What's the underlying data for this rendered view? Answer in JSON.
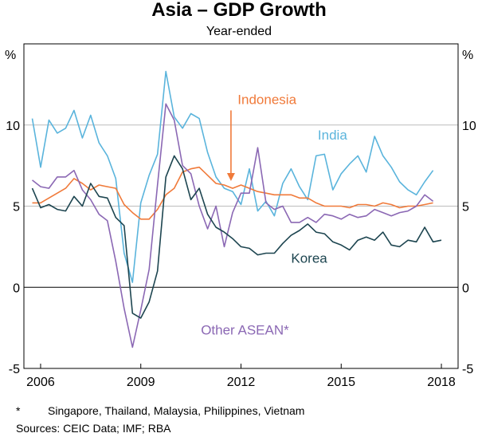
{
  "chart_data": {
    "type": "line",
    "title": "Asia – GDP Growth",
    "subtitle": "Year-ended",
    "y_unit_left": "%",
    "y_unit_right": "%",
    "ylim": [
      -5,
      15
    ],
    "y_ticks": [
      -5,
      0,
      5,
      10
    ],
    "x_range": [
      2005.5,
      2018.5
    ],
    "x_ticks": [
      {
        "value": 2006,
        "label": "2006"
      },
      {
        "value": 2009,
        "label": "2009"
      },
      {
        "value": 2012,
        "label": "2012"
      },
      {
        "value": 2015,
        "label": "2015"
      },
      {
        "value": 2018,
        "label": "2018"
      }
    ],
    "grid": "horizontal",
    "series": [
      {
        "name": "India",
        "color": "#5ab4dc",
        "x": [
          2005.75,
          2006.0,
          2006.25,
          2006.5,
          2006.75,
          2007.0,
          2007.25,
          2007.5,
          2007.75,
          2008.0,
          2008.25,
          2008.5,
          2008.75,
          2009.0,
          2009.25,
          2009.5,
          2009.75,
          2010.0,
          2010.25,
          2010.5,
          2010.75,
          2011.0,
          2011.25,
          2011.5,
          2011.75,
          2012.0,
          2012.25,
          2012.5,
          2012.75,
          2013.0,
          2013.25,
          2013.5,
          2013.75,
          2014.0,
          2014.25,
          2014.5,
          2014.75,
          2015.0,
          2015.25,
          2015.5,
          2015.75,
          2016.0,
          2016.25,
          2016.5,
          2016.75,
          2017.0,
          2017.25,
          2017.5,
          2017.75
        ],
        "y": [
          10.4,
          7.4,
          10.3,
          9.5,
          9.8,
          10.9,
          9.2,
          10.6,
          8.9,
          8.1,
          6.7,
          2.1,
          0.3,
          5.2,
          6.9,
          8.2,
          13.3,
          10.5,
          9.8,
          10.7,
          10.4,
          8.3,
          6.8,
          6.1,
          5.9,
          5.1,
          7.3,
          4.7,
          5.3,
          4.4,
          6.4,
          7.3,
          6.2,
          5.4,
          8.1,
          8.2,
          6.0,
          7.0,
          7.6,
          8.1,
          7.1,
          9.3,
          8.1,
          7.4,
          6.5,
          6.0,
          5.7,
          6.5,
          7.2
        ]
      },
      {
        "name": "Indonesia",
        "color": "#f07a3a",
        "x": [
          2005.75,
          2006.0,
          2006.25,
          2006.5,
          2006.75,
          2007.0,
          2007.25,
          2007.5,
          2007.75,
          2008.0,
          2008.25,
          2008.5,
          2008.75,
          2009.0,
          2009.25,
          2009.5,
          2009.75,
          2010.0,
          2010.25,
          2010.5,
          2010.75,
          2011.0,
          2011.25,
          2011.5,
          2011.75,
          2012.0,
          2012.25,
          2012.5,
          2012.75,
          2013.0,
          2013.25,
          2013.5,
          2013.75,
          2014.0,
          2014.25,
          2014.5,
          2014.75,
          2015.0,
          2015.25,
          2015.5,
          2015.75,
          2016.0,
          2016.25,
          2016.5,
          2016.75,
          2017.0,
          2017.25,
          2017.5,
          2017.75
        ],
        "y": [
          5.2,
          5.2,
          5.5,
          5.8,
          6.1,
          6.7,
          6.4,
          6.0,
          6.3,
          6.2,
          6.1,
          5.1,
          4.6,
          4.2,
          4.2,
          4.8,
          5.7,
          6.1,
          7.1,
          7.3,
          7.4,
          6.9,
          6.4,
          6.3,
          6.1,
          6.3,
          6.1,
          5.9,
          5.8,
          5.7,
          5.7,
          5.7,
          5.5,
          5.5,
          5.2,
          5.0,
          5.0,
          5.0,
          4.9,
          5.1,
          5.1,
          5.0,
          5.2,
          5.1,
          4.9,
          5.0,
          5.0,
          5.1,
          5.2
        ]
      },
      {
        "name": "Other ASEAN*",
        "color": "#8b68b4",
        "x": [
          2005.75,
          2006.0,
          2006.25,
          2006.5,
          2006.75,
          2007.0,
          2007.25,
          2007.5,
          2007.75,
          2008.0,
          2008.25,
          2008.5,
          2008.75,
          2009.0,
          2009.25,
          2009.5,
          2009.75,
          2010.0,
          2010.25,
          2010.5,
          2010.75,
          2011.0,
          2011.25,
          2011.5,
          2011.75,
          2012.0,
          2012.25,
          2012.5,
          2012.75,
          2013.0,
          2013.25,
          2013.5,
          2013.75,
          2014.0,
          2014.25,
          2014.5,
          2014.75,
          2015.0,
          2015.25,
          2015.5,
          2015.75,
          2016.0,
          2016.25,
          2016.5,
          2016.75,
          2017.0,
          2017.25,
          2017.5,
          2017.75
        ],
        "y": [
          6.6,
          6.2,
          6.1,
          6.8,
          6.8,
          7.2,
          6.0,
          5.4,
          4.5,
          4.1,
          1.6,
          -1.3,
          -3.7,
          -1.4,
          1.1,
          6.3,
          11.3,
          10.3,
          7.5,
          7.0,
          5.0,
          3.6,
          5.0,
          2.5,
          4.6,
          5.8,
          5.8,
          8.6,
          5.2,
          4.8,
          5.0,
          4.0,
          4.0,
          4.3,
          4.0,
          4.5,
          4.4,
          4.2,
          4.5,
          4.3,
          4.4,
          4.8,
          4.6,
          4.4,
          4.6,
          4.7,
          5.0,
          5.7,
          5.3
        ]
      },
      {
        "name": "Korea",
        "color": "#1d4550",
        "x": [
          2005.75,
          2006.0,
          2006.25,
          2006.5,
          2006.75,
          2007.0,
          2007.25,
          2007.5,
          2007.75,
          2008.0,
          2008.25,
          2008.5,
          2008.75,
          2009.0,
          2009.25,
          2009.5,
          2009.75,
          2010.0,
          2010.25,
          2010.5,
          2010.75,
          2011.0,
          2011.25,
          2011.5,
          2011.75,
          2012.0,
          2012.25,
          2012.5,
          2012.75,
          2013.0,
          2013.25,
          2013.5,
          2013.75,
          2014.0,
          2014.25,
          2014.5,
          2014.75,
          2015.0,
          2015.25,
          2015.5,
          2015.75,
          2016.0,
          2016.25,
          2016.5,
          2016.75,
          2017.0,
          2017.25,
          2017.5,
          2017.75,
          2018.0
        ],
        "y": [
          6.1,
          4.9,
          5.1,
          4.8,
          4.7,
          5.6,
          5.0,
          6.4,
          5.6,
          5.5,
          4.3,
          3.8,
          -1.6,
          -1.9,
          -0.9,
          1.0,
          6.8,
          8.1,
          7.3,
          5.4,
          6.1,
          4.5,
          3.7,
          3.4,
          3.0,
          2.5,
          2.4,
          2.0,
          2.1,
          2.1,
          2.7,
          3.2,
          3.5,
          3.9,
          3.4,
          3.3,
          2.8,
          2.6,
          2.3,
          2.9,
          3.1,
          2.9,
          3.4,
          2.6,
          2.5,
          2.9,
          2.8,
          3.7,
          2.8,
          2.9
        ]
      }
    ],
    "series_labels": [
      {
        "series": "India",
        "text": "India",
        "x": 2014.3,
        "y": 9.1
      },
      {
        "series": "Indonesia",
        "text": "Indonesia",
        "x": 2011.9,
        "y": 11.3
      },
      {
        "series": "Korea",
        "text": "Korea",
        "x": 2013.5,
        "y": 1.5
      },
      {
        "series": "Other ASEAN*",
        "text": "Other ASEAN*",
        "x": 2010.8,
        "y": -2.9
      }
    ],
    "arrow": {
      "series": "Indonesia",
      "from": [
        2011.7,
        10.9
      ],
      "to": [
        2011.7,
        6.55
      ]
    },
    "footnote": "Singapore, Thailand, Malaysia, Philippines, Vietnam",
    "footnote_marker": "*",
    "sources": "Sources: CEIC Data; IMF; RBA"
  }
}
